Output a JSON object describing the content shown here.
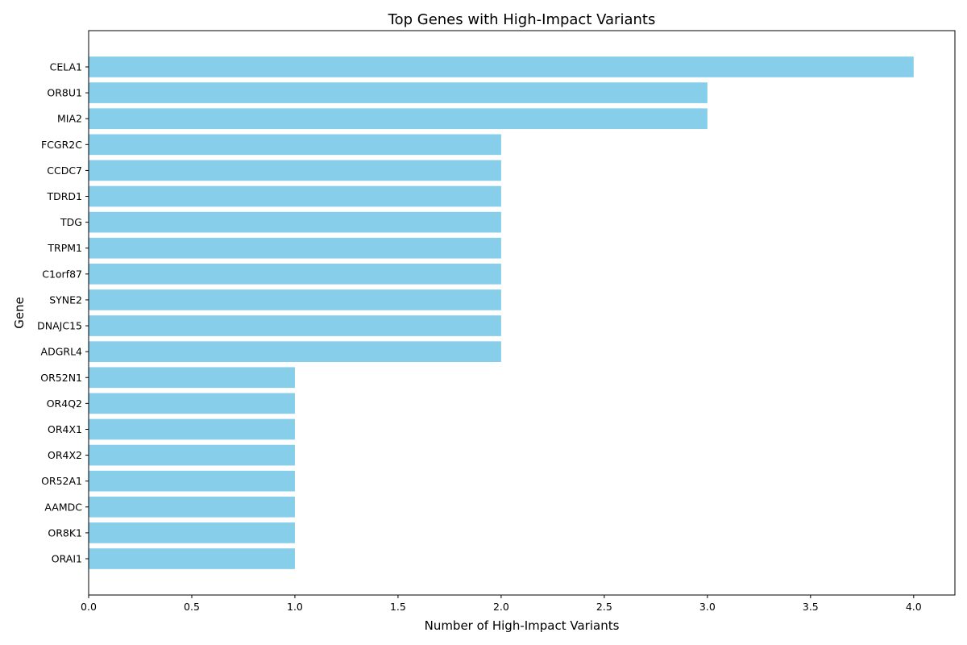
{
  "chart_data": {
    "type": "bar",
    "orientation": "horizontal",
    "title": "Top Genes with High-Impact Variants",
    "xlabel": "Number of High-Impact Variants",
    "ylabel": "Gene",
    "xlim": [
      0,
      4.2
    ],
    "x_ticks": [
      "0.0",
      "0.5",
      "1.0",
      "1.5",
      "2.0",
      "2.5",
      "3.0",
      "3.5",
      "4.0"
    ],
    "x_tick_values": [
      0,
      0.5,
      1,
      1.5,
      2,
      2.5,
      3,
      3.5,
      4
    ],
    "categories": [
      "CELA1",
      "OR8U1",
      "MIA2",
      "FCGR2C",
      "CCDC7",
      "TDRD1",
      "TDG",
      "TRPM1",
      "C1orf87",
      "SYNE2",
      "DNAJC15",
      "ADGRL4",
      "OR52N1",
      "OR4Q2",
      "OR4X1",
      "OR4X2",
      "OR52A1",
      "AAMDC",
      "OR8K1",
      "ORAI1"
    ],
    "values": [
      4,
      3,
      3,
      2,
      2,
      2,
      2,
      2,
      2,
      2,
      2,
      2,
      1,
      1,
      1,
      1,
      1,
      1,
      1,
      1
    ],
    "bar_color": "#87ceeb",
    "grid": false,
    "legend": "none"
  }
}
